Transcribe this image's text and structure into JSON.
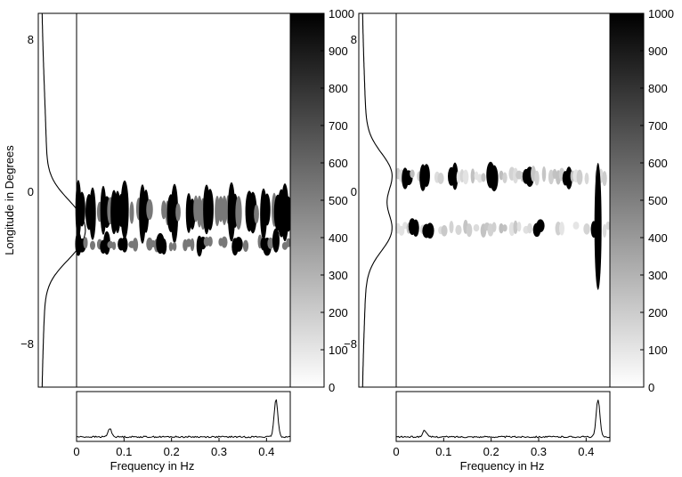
{
  "chart_data": [
    {
      "type": "heatmap",
      "panel": "left",
      "xlabel": "Frequency in Hz",
      "ylabel": "Longitude in Degrees",
      "xlim": [
        0,
        0.45
      ],
      "ylim": [
        -10,
        10
      ],
      "xticks": [
        "0",
        "0.1",
        "0.2",
        "0.3",
        "0.4"
      ],
      "yticks": [
        "8",
        "0",
        "−8"
      ],
      "colorbar": {
        "range": [
          0,
          1000
        ],
        "ticks": [
          "0",
          "100",
          "200",
          "300",
          "400",
          "500",
          "600",
          "700",
          "800",
          "900",
          "1000"
        ]
      },
      "bands": [
        {
          "lat": -0.6,
          "spread": 0.85,
          "dark": [
            0.01,
            0.03,
            0.06,
            0.08,
            0.095,
            0.14,
            0.2,
            0.24,
            0.28,
            0.33,
            0.37,
            0.4,
            0.43,
            0.445
          ]
        },
        {
          "lat": -2.35,
          "spread": 0.35,
          "dark": [
            0.01,
            0.06,
            0.1,
            0.18,
            0.26,
            0.34,
            0.4
          ]
        }
      ],
      "spike": {
        "x": 0.42,
        "lat": [
          -1.5,
          -2.8
        ]
      },
      "side_profile": {
        "peaks_lat": [
          -0.8,
          -2.4
        ],
        "scale": 1.0
      },
      "bottom_spectrum": {
        "peaks_x": [
          0.07,
          0.42
        ],
        "peak_height": [
          0.22,
          1.0
        ]
      }
    },
    {
      "type": "heatmap",
      "panel": "right",
      "xlabel": "Frequency in Hz",
      "xlim": [
        0,
        0.45
      ],
      "ylim": [
        -10,
        10
      ],
      "xticks": [
        "0",
        "0.1",
        "0.2",
        "0.3",
        "0.4"
      ],
      "yticks": [
        "8",
        "0",
        "−8"
      ],
      "colorbar": {
        "range": [
          0,
          1000
        ],
        "ticks": [
          "0",
          "100",
          "200",
          "300",
          "400",
          "500",
          "600",
          "700",
          "800",
          "900",
          "1000"
        ]
      },
      "bands": [
        {
          "lat": 1.3,
          "spread": 0.4,
          "dark": [
            0.02,
            0.06,
            0.12,
            0.2,
            0.28,
            0.36
          ]
        },
        {
          "lat": -1.5,
          "spread": 0.35,
          "dark": [
            0.04,
            0.07,
            0.3,
            0.42
          ]
        }
      ],
      "spike": {
        "x": 0.425,
        "lat": [
          2.0,
          -4.8
        ]
      },
      "side_profile": {
        "peaks_lat": [
          1.4,
          -1.6
        ],
        "scale": 1.0
      },
      "bottom_spectrum": {
        "peaks_x": [
          0.06,
          0.425
        ],
        "peak_height": [
          0.18,
          1.0
        ]
      }
    }
  ]
}
